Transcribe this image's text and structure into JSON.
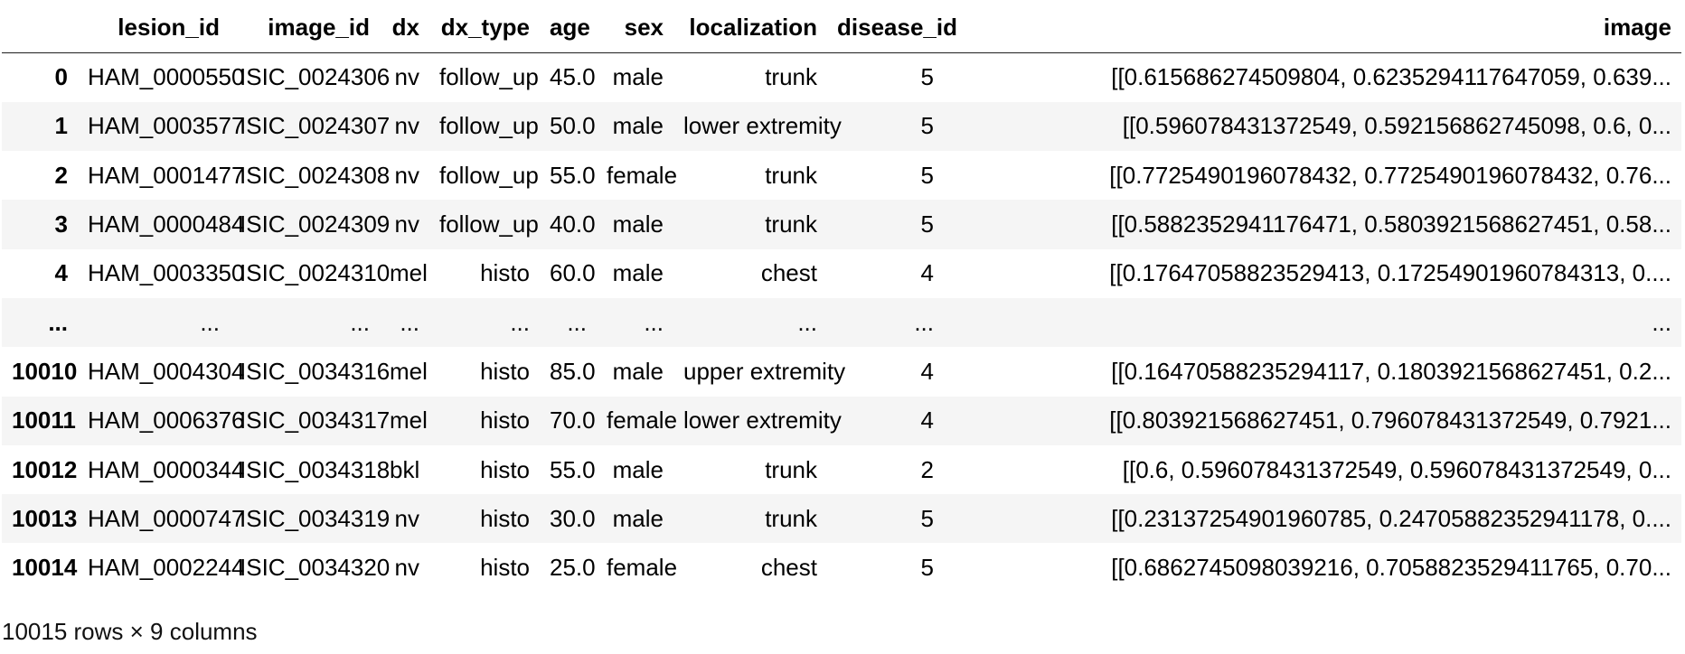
{
  "table": {
    "columns": [
      "",
      "lesion_id",
      "image_id",
      "dx",
      "dx_type",
      "age",
      "sex",
      "localization",
      "disease_id",
      "image"
    ],
    "rows": [
      [
        "0",
        "HAM_0000550",
        "ISIC_0024306",
        "nv",
        "follow_up",
        "45.0",
        "male",
        "trunk",
        "5",
        "[[0.615686274509804, 0.6235294117647059, 0.639..."
      ],
      [
        "1",
        "HAM_0003577",
        "ISIC_0024307",
        "nv",
        "follow_up",
        "50.0",
        "male",
        "lower extremity",
        "5",
        "[[0.596078431372549, 0.592156862745098, 0.6, 0..."
      ],
      [
        "2",
        "HAM_0001477",
        "ISIC_0024308",
        "nv",
        "follow_up",
        "55.0",
        "female",
        "trunk",
        "5",
        "[[0.7725490196078432, 0.7725490196078432, 0.76..."
      ],
      [
        "3",
        "HAM_0000484",
        "ISIC_0024309",
        "nv",
        "follow_up",
        "40.0",
        "male",
        "trunk",
        "5",
        "[[0.5882352941176471, 0.5803921568627451, 0.58..."
      ],
      [
        "4",
        "HAM_0003350",
        "ISIC_0024310",
        "mel",
        "histo",
        "60.0",
        "male",
        "chest",
        "4",
        "[[0.17647058823529413, 0.17254901960784313, 0...."
      ],
      [
        "...",
        "...",
        "...",
        "...",
        "...",
        "...",
        "...",
        "...",
        "...",
        "..."
      ],
      [
        "10010",
        "HAM_0004304",
        "ISIC_0034316",
        "mel",
        "histo",
        "85.0",
        "male",
        "upper extremity",
        "4",
        "[[0.16470588235294117, 0.1803921568627451, 0.2..."
      ],
      [
        "10011",
        "HAM_0006376",
        "ISIC_0034317",
        "mel",
        "histo",
        "70.0",
        "female",
        "lower extremity",
        "4",
        "[[0.803921568627451, 0.796078431372549, 0.7921..."
      ],
      [
        "10012",
        "HAM_0000344",
        "ISIC_0034318",
        "bkl",
        "histo",
        "55.0",
        "male",
        "trunk",
        "2",
        "[[0.6, 0.596078431372549, 0.596078431372549, 0..."
      ],
      [
        "10013",
        "HAM_0000747",
        "ISIC_0034319",
        "nv",
        "histo",
        "30.0",
        "male",
        "trunk",
        "5",
        "[[0.23137254901960785, 0.24705882352941178, 0...."
      ],
      [
        "10014",
        "HAM_0002244",
        "ISIC_0034320",
        "nv",
        "histo",
        "25.0",
        "female",
        "chest",
        "5",
        "[[0.6862745098039216, 0.7058823529411765, 0.70..."
      ]
    ]
  },
  "footer": {
    "shape_text": "10015 rows × 9 columns"
  },
  "colors": {
    "stripe": "#f5f5f5",
    "header_rule": "#1f1f1f"
  }
}
